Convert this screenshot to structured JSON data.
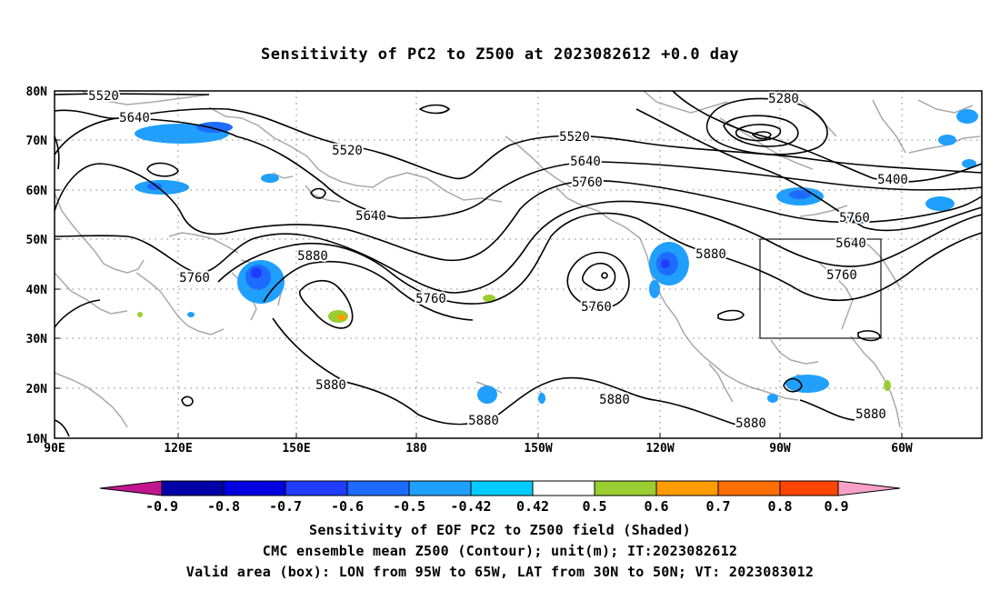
{
  "title": "Sensitivity of PC2 to Z500 at 2023082612 +0.0 day",
  "lat_labels": [
    "80N",
    "70N",
    "60N",
    "50N",
    "40N",
    "30N",
    "20N",
    "10N"
  ],
  "lon_labels": [
    "90E",
    "120E",
    "150E",
    "180",
    "150W",
    "120W",
    "90W",
    "60W"
  ],
  "contour_labels": [
    "5520",
    "5640",
    "5520",
    "5520",
    "5640",
    "5760",
    "5640",
    "5760",
    "5880",
    "5760",
    "5760",
    "5880",
    "5880",
    "5760",
    "5880",
    "5880",
    "5280",
    "5400",
    "5640",
    "5760",
    "5880",
    "5880"
  ],
  "colorbar": {
    "labels": [
      "-0.9",
      "-0.8",
      "-0.7",
      "-0.6",
      "-0.5",
      "-0.42",
      "0.42",
      "0.5",
      "0.6",
      "0.7",
      "0.8",
      "0.9"
    ],
    "colors": [
      "#c1168e",
      "#0000a8",
      "#0000e0",
      "#1f3cff",
      "#1e6cff",
      "#1fa0ff",
      "#00ccff",
      "#ffffff",
      "#9acd32",
      "#ff9c00",
      "#ff6e00",
      "#ff4600",
      "#ff0000",
      "#f7a1c8"
    ]
  },
  "valid_box": {
    "lon_min": -95,
    "lon_max": -65,
    "lat_min": 30,
    "lat_max": 50
  },
  "caption": {
    "line1": "Sensitivity of EOF PC2 to Z500 field (Shaded)",
    "line2": "CMC ensemble mean Z500 (Contour); unit(m); IT:2023082612",
    "line3": "Valid area (box): LON from 95W to 65W, LAT from 30N to 50N; VT: 2023083012"
  }
}
